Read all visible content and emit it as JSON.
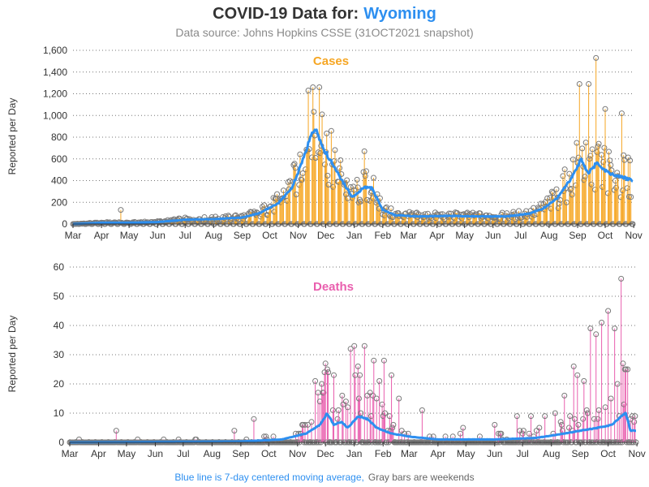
{
  "header": {
    "title_prefix": "COVID-19 Data for:",
    "title_state": "Wyoming",
    "subtitle": "Data source: Johns Hopkins CSSE (31OCT2021 snapshot)"
  },
  "footer": {
    "blue_note": "Blue line is 7-day centered moving average,",
    "gray_note": "Gray bars are weekends"
  },
  "colors": {
    "cases": "#f6a623",
    "deaths": "#e95fae",
    "average_line": "#2d8ff0",
    "weekend": "#9a9a9a",
    "state_title": "#2d8ff0"
  },
  "chart_data": [
    {
      "type": "bar",
      "title": "Cases",
      "ylabel": "Reported per Day",
      "xlabel": "",
      "x_ticks": [
        "Mar",
        "Apr",
        "May",
        "Jun",
        "Jul",
        "Aug",
        "Sep",
        "Oct",
        "Nov",
        "Dec",
        "Jan",
        "Feb",
        "Mar",
        "Apr",
        "May",
        "Jun",
        "Jul",
        "Aug",
        "Sep",
        "Oct",
        "Nov"
      ],
      "x_range": [
        "2020-03-01",
        "2021-10-31"
      ],
      "y_ticks": [
        "0",
        "200",
        "400",
        "600",
        "800",
        "1,000",
        "1,200",
        "1,400",
        "1,600"
      ],
      "ylim": [
        0,
        1600
      ],
      "grid": "horizontal dotted",
      "series": [
        {
          "name": "",
          "style": "spikes with open circle markers; zero on weekends",
          "approx_daily_level_by_month": [
            {
              "month": "2020-03",
              "value": 5
            },
            {
              "month": "2020-04",
              "value": 15
            },
            {
              "month": "2020-05",
              "value": 12
            },
            {
              "month": "2020-06",
              "value": 20
            },
            {
              "month": "2020-07",
              "value": 40
            },
            {
              "month": "2020-08",
              "value": 45
            },
            {
              "month": "2020-09",
              "value": 60
            },
            {
              "month": "2020-10",
              "value": 210
            },
            {
              "month": "2020-11",
              "value": 700
            },
            {
              "month": "2020-12",
              "value": 520
            },
            {
              "month": "2021-01",
              "value": 300
            },
            {
              "month": "2021-02",
              "value": 90
            },
            {
              "month": "2021-03",
              "value": 70
            },
            {
              "month": "2021-04",
              "value": 80
            },
            {
              "month": "2021-05",
              "value": 75
            },
            {
              "month": "2021-06",
              "value": 70
            },
            {
              "month": "2021-07",
              "value": 140
            },
            {
              "month": "2021-08",
              "value": 450
            },
            {
              "month": "2021-09",
              "value": 680
            },
            {
              "month": "2021-10",
              "value": 520
            }
          ],
          "notable_peaks": [
            {
              "date": "2020-04-22",
              "value": 130
            },
            {
              "date": "2020-11-12",
              "value": 1230
            },
            {
              "date": "2020-11-17",
              "value": 1260
            },
            {
              "date": "2020-11-24",
              "value": 1260
            },
            {
              "date": "2020-11-27",
              "value": 1010
            },
            {
              "date": "2021-01-12",
              "value": 670
            },
            {
              "date": "2021-09-03",
              "value": 1290
            },
            {
              "date": "2021-09-13",
              "value": 1290
            },
            {
              "date": "2021-09-21",
              "value": 1530
            },
            {
              "date": "2021-10-01",
              "value": 1060
            },
            {
              "date": "2021-10-19",
              "value": 1020
            }
          ]
        },
        {
          "name": "7-day centered moving average",
          "points": [
            {
              "date": "2020-03-01",
              "value": 0
            },
            {
              "date": "2020-04-01",
              "value": 12
            },
            {
              "date": "2020-05-01",
              "value": 12
            },
            {
              "date": "2020-06-01",
              "value": 18
            },
            {
              "date": "2020-07-01",
              "value": 40
            },
            {
              "date": "2020-08-01",
              "value": 45
            },
            {
              "date": "2020-09-01",
              "value": 60
            },
            {
              "date": "2020-09-20",
              "value": 100
            },
            {
              "date": "2020-10-10",
              "value": 190
            },
            {
              "date": "2020-10-25",
              "value": 330
            },
            {
              "date": "2020-11-05",
              "value": 560
            },
            {
              "date": "2020-11-15",
              "value": 820
            },
            {
              "date": "2020-11-20",
              "value": 880
            },
            {
              "date": "2020-11-28",
              "value": 700
            },
            {
              "date": "2020-12-08",
              "value": 560
            },
            {
              "date": "2020-12-20",
              "value": 380
            },
            {
              "date": "2020-12-30",
              "value": 250
            },
            {
              "date": "2021-01-12",
              "value": 340
            },
            {
              "date": "2021-01-20",
              "value": 330
            },
            {
              "date": "2021-02-01",
              "value": 130
            },
            {
              "date": "2021-02-15",
              "value": 80
            },
            {
              "date": "2021-03-15",
              "value": 70
            },
            {
              "date": "2021-04-15",
              "value": 75
            },
            {
              "date": "2021-05-15",
              "value": 70
            },
            {
              "date": "2021-06-15",
              "value": 70
            },
            {
              "date": "2021-07-10",
              "value": 95
            },
            {
              "date": "2021-07-25",
              "value": 140
            },
            {
              "date": "2021-08-10",
              "value": 240
            },
            {
              "date": "2021-08-25",
              "value": 420
            },
            {
              "date": "2021-09-05",
              "value": 600
            },
            {
              "date": "2021-09-12",
              "value": 470
            },
            {
              "date": "2021-09-22",
              "value": 560
            },
            {
              "date": "2021-10-05",
              "value": 470
            },
            {
              "date": "2021-10-20",
              "value": 430
            },
            {
              "date": "2021-10-31",
              "value": 400
            }
          ]
        }
      ]
    },
    {
      "type": "bar",
      "title": "Deaths",
      "ylabel": "Reported per Day",
      "xlabel": "",
      "x_ticks": [
        "Mar",
        "Apr",
        "May",
        "Jun",
        "Jul",
        "Aug",
        "Sep",
        "Oct",
        "Nov",
        "Dec",
        "Jan",
        "Feb",
        "Mar",
        "Apr",
        "May",
        "Jun",
        "Jul",
        "Aug",
        "Sep",
        "Oct",
        "Nov"
      ],
      "x_range": [
        "2020-03-01",
        "2021-10-31"
      ],
      "y_ticks": [
        "0",
        "10",
        "20",
        "30",
        "40",
        "50",
        "60"
      ],
      "ylim": [
        0,
        60
      ],
      "grid": "horizontal dotted",
      "series": [
        {
          "name": "",
          "style": "spikes with open circle markers",
          "notable_values": [
            {
              "date": "2020-04-20",
              "value": 4
            },
            {
              "date": "2020-08-25",
              "value": 4
            },
            {
              "date": "2020-09-15",
              "value": 8
            },
            {
              "date": "2020-11-20",
              "value": 21
            },
            {
              "date": "2020-12-01",
              "value": 27
            },
            {
              "date": "2020-12-04",
              "value": 24
            },
            {
              "date": "2020-12-10",
              "value": 23
            },
            {
              "date": "2020-12-28",
              "value": 32
            },
            {
              "date": "2021-01-01",
              "value": 33
            },
            {
              "date": "2021-01-05",
              "value": 26
            },
            {
              "date": "2021-01-12",
              "value": 33
            },
            {
              "date": "2021-01-22",
              "value": 28
            },
            {
              "date": "2021-01-28",
              "value": 21
            },
            {
              "date": "2021-02-02",
              "value": 28
            },
            {
              "date": "2021-02-10",
              "value": 23
            },
            {
              "date": "2021-02-18",
              "value": 15
            },
            {
              "date": "2021-03-15",
              "value": 11
            },
            {
              "date": "2021-04-28",
              "value": 5
            },
            {
              "date": "2021-06-01",
              "value": 6
            },
            {
              "date": "2021-06-25",
              "value": 9
            },
            {
              "date": "2021-07-10",
              "value": 9
            },
            {
              "date": "2021-07-25",
              "value": 9
            },
            {
              "date": "2021-08-05",
              "value": 10
            },
            {
              "date": "2021-08-15",
              "value": 16
            },
            {
              "date": "2021-08-25",
              "value": 26
            },
            {
              "date": "2021-08-29",
              "value": 23
            },
            {
              "date": "2021-09-05",
              "value": 21
            },
            {
              "date": "2021-09-12",
              "value": 39
            },
            {
              "date": "2021-09-18",
              "value": 37
            },
            {
              "date": "2021-09-24",
              "value": 41
            },
            {
              "date": "2021-10-01",
              "value": 45
            },
            {
              "date": "2021-10-08",
              "value": 39
            },
            {
              "date": "2021-10-15",
              "value": 56
            },
            {
              "date": "2021-10-18",
              "value": 13
            },
            {
              "date": "2021-10-22",
              "value": 25
            }
          ]
        },
        {
          "name": "7-day centered moving average",
          "points": [
            {
              "date": "2020-03-01",
              "value": 0
            },
            {
              "date": "2020-09-01",
              "value": 0.3
            },
            {
              "date": "2020-10-15",
              "value": 1
            },
            {
              "date": "2020-11-10",
              "value": 3
            },
            {
              "date": "2020-11-25",
              "value": 6
            },
            {
              "date": "2020-12-03",
              "value": 10
            },
            {
              "date": "2020-12-10",
              "value": 6
            },
            {
              "date": "2020-12-18",
              "value": 7
            },
            {
              "date": "2020-12-25",
              "value": 5
            },
            {
              "date": "2021-01-05",
              "value": 9
            },
            {
              "date": "2021-01-15",
              "value": 8
            },
            {
              "date": "2021-01-25",
              "value": 5
            },
            {
              "date": "2021-02-10",
              "value": 3
            },
            {
              "date": "2021-03-01",
              "value": 2
            },
            {
              "date": "2021-04-01",
              "value": 1
            },
            {
              "date": "2021-06-01",
              "value": 1
            },
            {
              "date": "2021-07-15",
              "value": 1.5
            },
            {
              "date": "2021-08-15",
              "value": 3
            },
            {
              "date": "2021-09-01",
              "value": 4
            },
            {
              "date": "2021-09-20",
              "value": 5
            },
            {
              "date": "2021-10-05",
              "value": 6
            },
            {
              "date": "2021-10-15",
              "value": 9
            },
            {
              "date": "2021-10-20",
              "value": 10
            },
            {
              "date": "2021-10-25",
              "value": 4
            }
          ]
        }
      ]
    }
  ]
}
